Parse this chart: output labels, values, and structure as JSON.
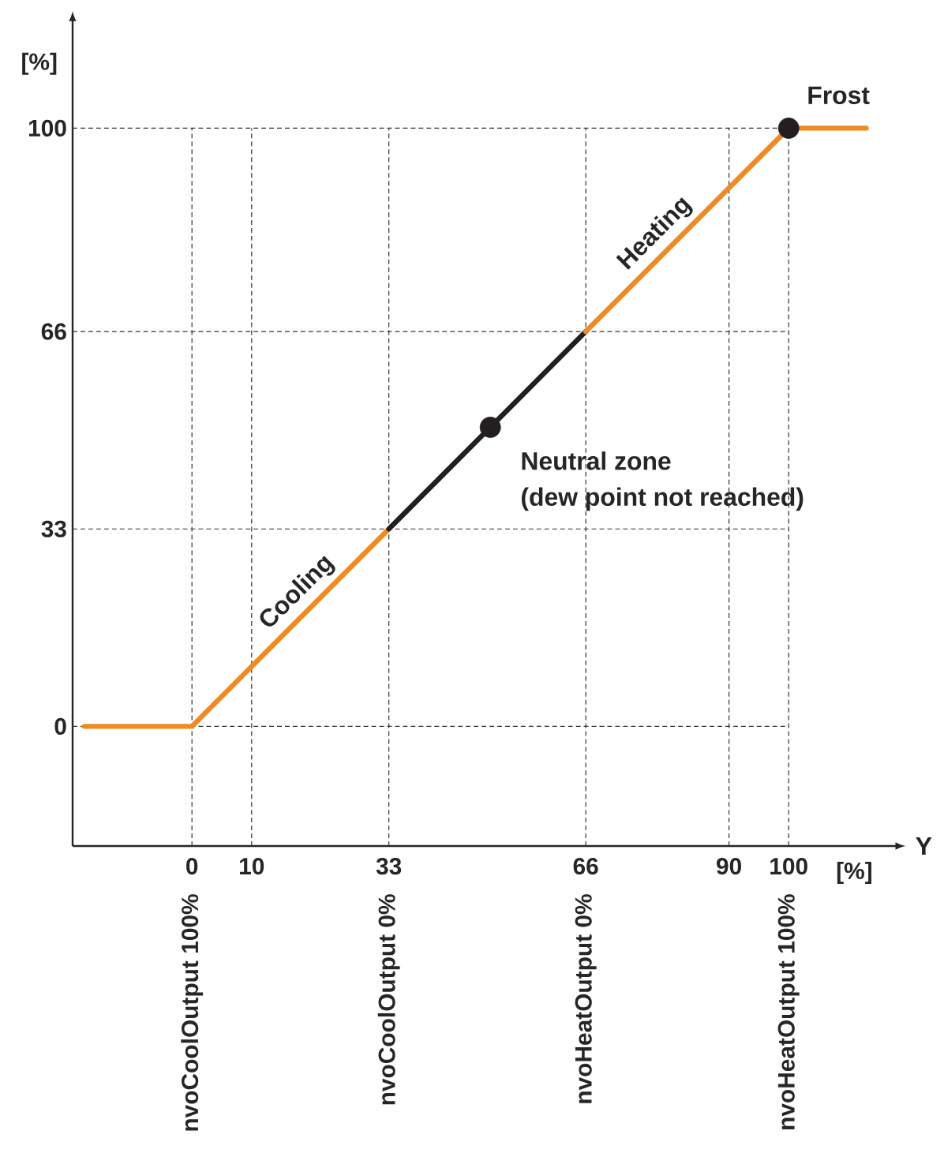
{
  "chart_data": {
    "type": "line",
    "xlabel": "[%]",
    "ylabel": "[%]",
    "xlim": [
      -20,
      118
    ],
    "ylim": [
      -20,
      118
    ],
    "xticks": [
      0,
      10,
      33,
      66,
      90,
      100
    ],
    "yticks": [
      0,
      33,
      66,
      100
    ],
    "grid": "y",
    "line_style": "solid",
    "series": [
      {
        "color": "#f08a24",
        "x": [
          -18,
          0,
          33
        ],
        "values": [
          0,
          0,
          33
        ]
      },
      {
        "color": "#231f20",
        "x": [
          33,
          66
        ],
        "values": [
          33,
          66
        ]
      },
      {
        "color": "#f08a24",
        "x": [
          66,
          100,
          113
        ],
        "values": [
          66,
          100,
          100
        ]
      },
      {
        "type": "scatter",
        "color": "#231f20",
        "marker": "circle",
        "x": [
          50,
          100
        ],
        "values": [
          50,
          100
        ]
      }
    ],
    "ref_lines": [
      {
        "axis": "x",
        "value": 0,
        "label": "nvoCoolOutput 100%",
        "line_style": "dashed"
      },
      {
        "axis": "x",
        "value": 10,
        "line_style": "dashed"
      },
      {
        "axis": "x",
        "value": 33,
        "label": "nvoCoolOutput 0%",
        "line_style": "dashed"
      },
      {
        "axis": "x",
        "value": 66,
        "label": "nvoHeatOutput 0%",
        "line_style": "dashed"
      },
      {
        "axis": "x",
        "value": 90,
        "line_style": "dashed"
      },
      {
        "axis": "x",
        "value": 100,
        "label": "nvoHeatOutput 100%",
        "line_style": "dashed"
      }
    ],
    "annotations": [
      {
        "text": "Cooling",
        "x": 20,
        "y": 20
      },
      {
        "text": "Heating",
        "x": 80,
        "y": 80
      },
      "Frost",
      "Neutral zone",
      "(dew point not reached)",
      "Y"
    ]
  }
}
